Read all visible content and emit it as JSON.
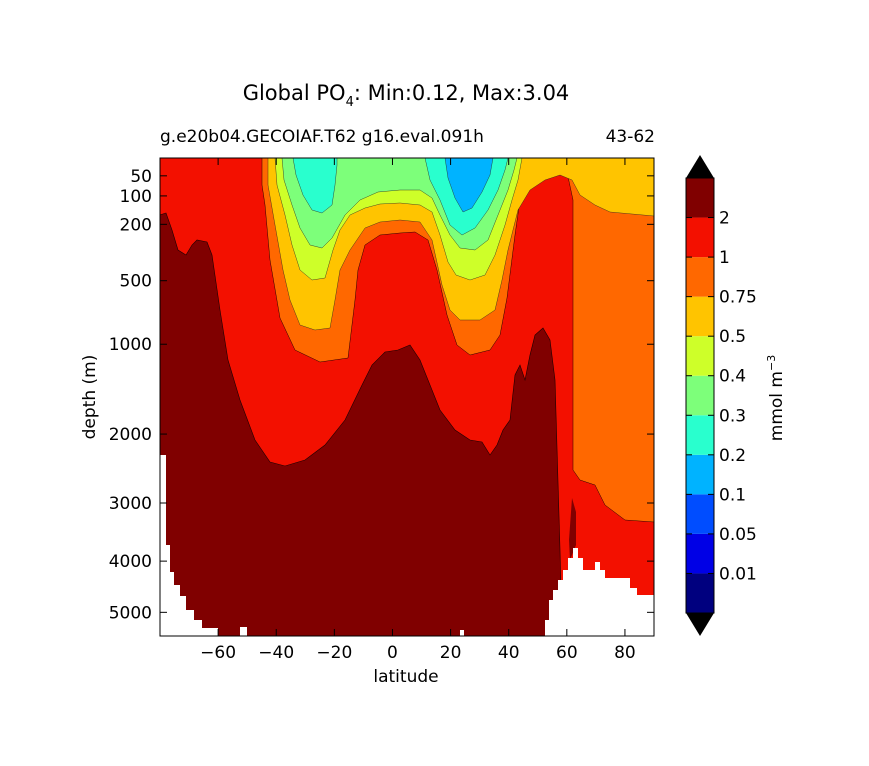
{
  "chart_data": {
    "type": "contour",
    "title_prefix": "Global PO",
    "title_subscript": "4",
    "title_suffix": ": Min:0.12, Max:3.04",
    "subtitle_left": "g.e20b04.GECOIAF.T62 g16.eval.091h",
    "subtitle_right": "43-62",
    "xlabel": "latitude",
    "ylabel": "depth (m)",
    "xlim": [
      -80,
      90
    ],
    "ylim": [
      5500,
      20
    ],
    "yscale": "sqrt",
    "x_ticks": [
      "−60",
      "−40",
      "−20",
      "0",
      "20",
      "40",
      "60",
      "80"
    ],
    "x_tick_values": [
      -60,
      -40,
      -20,
      0,
      20,
      40,
      60,
      80
    ],
    "y_ticks": [
      "50",
      "100",
      "200",
      "500",
      "1000",
      "2000",
      "3000",
      "4000",
      "5000"
    ],
    "y_tick_values": [
      50,
      100,
      200,
      500,
      1000,
      2000,
      3000,
      4000,
      5000
    ],
    "colorbar": {
      "label_base": "mmol m",
      "label_exp": "−3",
      "levels": [
        "0.01",
        "0.05",
        "0.1",
        "0.2",
        "0.3",
        "0.4",
        "0.5",
        "0.75",
        "1",
        "2"
      ],
      "colors": [
        "#00007f",
        "#0000e6",
        "#004dff",
        "#00b3ff",
        "#29ffce",
        "#7dff7a",
        "#ceff29",
        "#ffc400",
        "#ff6800",
        "#f31000",
        "#800000"
      ],
      "extend": "both"
    },
    "contour_bands": [
      {
        "level_floor": 0.75,
        "color": "#ff6800"
      },
      {
        "level_floor": 1,
        "color": "#f31000"
      },
      {
        "level_floor": 2,
        "color": "#800000"
      },
      {
        "level_floor": 0.5,
        "color": "#ffc400"
      },
      {
        "level_floor": 0.4,
        "color": "#ceff29"
      },
      {
        "level_floor": 0.3,
        "color": "#7dff7a"
      },
      {
        "level_floor": 0.2,
        "color": "#29ffce"
      },
      {
        "level_floor": 0.1,
        "color": "#00b3ff"
      }
    ],
    "seafloor_color": "#ffffff"
  }
}
